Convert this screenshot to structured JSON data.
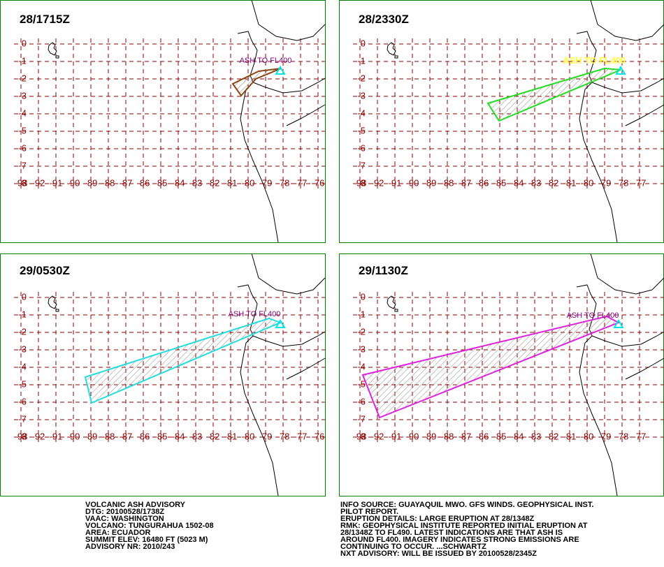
{
  "panels": [
    {
      "title": "28/1715Z",
      "label": "ASH TO FL400",
      "lat_labels": [
        "0",
        "-1",
        "-2",
        "-3",
        "-4",
        "-5",
        "-6",
        "-7",
        "-8"
      ],
      "lon_labels": [
        "-93",
        "-92",
        "-91",
        "-90",
        "-89",
        "-88",
        "-87",
        "-86",
        "-85",
        "-84",
        "-83",
        "-82",
        "-81",
        "-80",
        "-79",
        "-78",
        "-77",
        "-76"
      ]
    },
    {
      "title": "28/2330Z",
      "label": "ASH TO FL400",
      "lat_labels": [
        "0",
        "-1",
        "-2",
        "-3",
        "-4",
        "-5",
        "-6",
        "-7",
        "-8"
      ],
      "lon_labels": [
        "-93",
        "-92",
        "-91",
        "-90",
        "-89",
        "-88",
        "-87",
        "-86",
        "-85",
        "-84",
        "-83",
        "-82",
        "-81",
        "-80",
        "-79",
        "-78",
        "-77"
      ]
    },
    {
      "title": "29/0530Z",
      "label": "ASH TO FL400",
      "lat_labels": [
        "0",
        "-1",
        "-2",
        "-3",
        "-4",
        "-5",
        "-6",
        "-7",
        "-8"
      ],
      "lon_labels": [
        "-93",
        "-92",
        "-91",
        "-90",
        "-89",
        "-88",
        "-87",
        "-86",
        "-85",
        "-84",
        "-83",
        "-82",
        "-81",
        "-80",
        "-79",
        "-78",
        "-77",
        "-76"
      ]
    },
    {
      "title": "29/1130Z",
      "label": "ASH TO FL400",
      "lat_labels": [
        "0",
        "-1",
        "-2",
        "-3",
        "-4",
        "-5",
        "-6",
        "-7",
        "-8"
      ],
      "lon_labels": [
        "-93",
        "-92",
        "-91",
        "-90",
        "-89",
        "-88",
        "-87",
        "-86",
        "-85",
        "-84",
        "-83",
        "-82",
        "-81",
        "-80",
        "-79",
        "-78",
        "-77"
      ]
    }
  ],
  "text_left": [
    "VOLCANIC ASH ADVISORY",
    "DTG: 20100528/1738Z",
    "VAAC: WASHINGTON",
    "VOLCANO: TUNGURAHUA 1502-08",
    "AREA: ECUADOR",
    "SUMMIT ELEV: 16480 FT (5023 M)",
    "ADVISORY NR: 2010/243"
  ],
  "text_right": [
    "INFO SOURCE: GUAYAQUIL MWO. GFS WINDS. GEOPHYSICAL INST.",
    "PILOT REPORT.",
    "ERUPTION DETAILS: LARGE ERUPTION AT 28/1348Z",
    "RMK: GEOPHYSICAL INSTITUTE REPORTED INITIAL ERUPTION AT",
    "28/1348Z TO FL490. LATEST INDICATIONS ARE THAT ASH IS",
    "AROUND FL400. IMAGERY INDICATES STRONG EMISSIONS ARE",
    "CONTINUING TO OCCUR. ...SCHWARTZ",
    "NXT ADVISORY: WILL BE ISSUED BY 20100528/2345Z"
  ]
}
